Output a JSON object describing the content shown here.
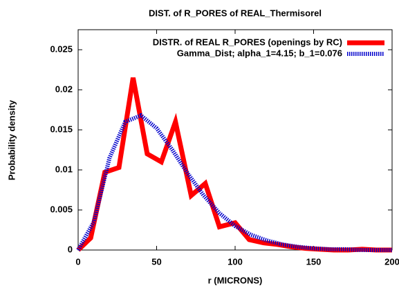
{
  "chart_data": {
    "type": "line",
    "title": "DIST. of R_PORES of REAL_Thermisorel",
    "xlabel": "r (MICRONS)",
    "ylabel": "Probability density",
    "xlim": [
      0,
      200
    ],
    "ylim": [
      0,
      0.0275
    ],
    "xticks": [
      0,
      50,
      100,
      150,
      200
    ],
    "yticks": [
      0,
      0.005,
      0.01,
      0.015,
      0.02,
      0.025
    ],
    "legend": "top-right",
    "series": [
      {
        "name": "DISTR. of REAL R_PORES (openings by RC)",
        "color": "#ff0000",
        "style": "solid",
        "x": [
          0,
          8,
          17,
          26,
          35,
          44,
          53,
          62,
          72,
          81,
          90,
          100,
          109,
          118,
          127,
          136,
          145,
          154,
          163,
          172,
          181,
          190,
          200
        ],
        "values": [
          0,
          0.0015,
          0.0097,
          0.0103,
          0.0215,
          0.012,
          0.011,
          0.016,
          0.0068,
          0.0083,
          0.0029,
          0.0034,
          0.0013,
          0.0009,
          0.0007,
          0.0004,
          0.0002,
          0.0001,
          0,
          0,
          0.0001,
          0,
          0
        ]
      },
      {
        "name": "Gamma_Dist; alpha_1=4.15; b_1=0.076",
        "color": "#0000cc",
        "style": "dashed",
        "x": [
          0,
          10,
          20,
          30,
          40,
          50,
          60,
          70,
          80,
          90,
          100,
          110,
          120,
          130,
          140,
          150,
          160,
          170,
          180,
          190,
          200
        ],
        "values": [
          0,
          0.0035,
          0.0115,
          0.016,
          0.0168,
          0.0152,
          0.0125,
          0.0095,
          0.0068,
          0.0046,
          0.003,
          0.0019,
          0.0012,
          0.0007,
          0.0004,
          0.0002,
          0.0001,
          0.0001,
          0,
          0,
          0
        ]
      }
    ]
  }
}
